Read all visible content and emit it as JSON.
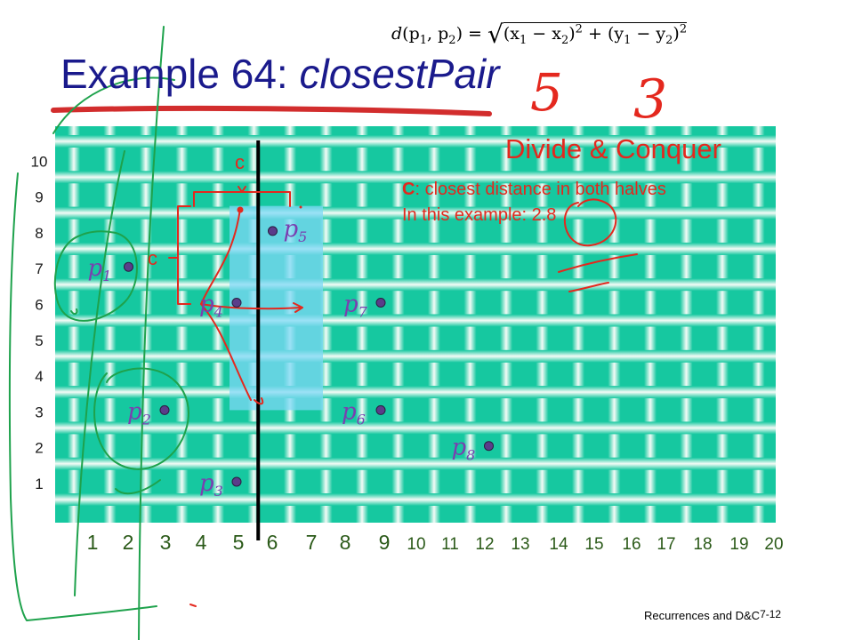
{
  "slide": {
    "title_prefix": "Example 64: ",
    "title_emphasis": "closestPair",
    "footer_text": "Recurrences and D&C",
    "slide_number": "7-12"
  },
  "formula": {
    "lhs_func": "d",
    "lhs_args": "(p",
    "sub1": "1",
    "mid": ", p",
    "sub2": "2",
    "close": ") = ",
    "a1": "(x",
    "as1": "1",
    "minus1": " − x",
    "as2": "2",
    "sq1": ")",
    "pow1": "2",
    "plus": " + (y",
    "bs1": "1",
    "minus2": " − y",
    "bs2": "2",
    "sq2": ")",
    "pow2": "2"
  },
  "annotations": {
    "heading": "Divide & Conquer",
    "line1_bold": "C",
    "line1_rest": ": closest distance in both halves",
    "line2": "In this example: 2.8",
    "c_top": "c",
    "c_left": "c",
    "handwritten_digits": [
      "5",
      "3"
    ]
  },
  "chart_data": {
    "type": "scatter",
    "x_ticks": [
      "1",
      "2",
      "3",
      "4",
      "5",
      "6",
      "7",
      "8",
      "9",
      "10",
      "11",
      "12",
      "13",
      "14",
      "15",
      "16",
      "17",
      "18",
      "19",
      "20"
    ],
    "y_ticks": [
      "1",
      "2",
      "3",
      "4",
      "5",
      "6",
      "7",
      "8",
      "9",
      "10"
    ],
    "points": [
      {
        "label": "p",
        "sub": "1",
        "x": 2,
        "y": 7
      },
      {
        "label": "p",
        "sub": "2",
        "x": 3,
        "y": 3
      },
      {
        "label": "p",
        "sub": "3",
        "x": 5,
        "y": 1
      },
      {
        "label": "p",
        "sub": "4",
        "x": 5,
        "y": 6
      },
      {
        "label": "p",
        "sub": "5",
        "x": 6,
        "y": 8
      },
      {
        "label": "p",
        "sub": "6",
        "x": 9,
        "y": 3
      },
      {
        "label": "p",
        "sub": "7",
        "x": 9,
        "y": 6
      },
      {
        "label": "p",
        "sub": "8",
        "x": 12,
        "y": 2
      }
    ],
    "divider_x": 5.5,
    "strip_x": [
      5,
      7
    ],
    "strip_y": [
      3,
      8.7
    ],
    "colors": {
      "grid_fill": "#16c8a0",
      "grid_line": "#eaf8ef",
      "divider": "#000000",
      "strip": "#7dd8f5",
      "points": "#5a3d8a",
      "labels": "#7a3fb0",
      "annotation": "#e4281e",
      "title": "#1a1a8c",
      "ink_green": "#1ea24c",
      "tick_labels_y": "#1b1b1b",
      "tick_labels_x": "#2b5a19"
    }
  }
}
